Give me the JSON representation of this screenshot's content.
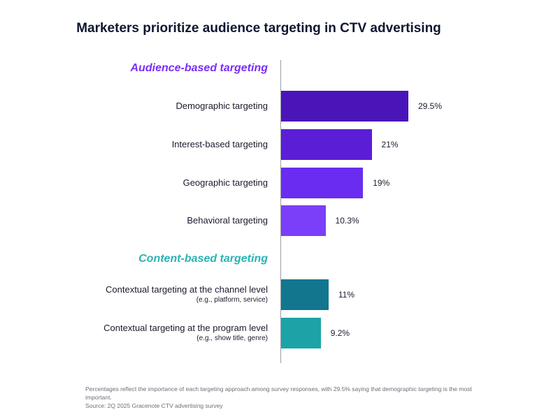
{
  "chart_data": {
    "type": "bar",
    "orientation": "horizontal",
    "title": "Marketers prioritize audience targeting in CTV advertising",
    "groups": [
      {
        "label": "Audience-based targeting",
        "color": "#7b2ff7",
        "items": [
          {
            "label": "Demographic targeting",
            "sub": "",
            "value": 29.5,
            "value_label": "29.5%",
            "color": "#4a15b8"
          },
          {
            "label": "Interest-based targeting",
            "sub": "",
            "value": 21,
            "value_label": "21%",
            "color": "#5b1ed6"
          },
          {
            "label": "Geographic targeting",
            "sub": "",
            "value": 19,
            "value_label": "19%",
            "color": "#6a2cf0"
          },
          {
            "label": "Behavioral targeting",
            "sub": "",
            "value": 10.3,
            "value_label": "10.3%",
            "color": "#7b3ff9"
          }
        ]
      },
      {
        "label": "Content-based targeting",
        "color": "#2bb3b3",
        "items": [
          {
            "label": "Contextual targeting at the channel level",
            "sub": "(e.g., platform, service)",
            "value": 11,
            "value_label": "11%",
            "color": "#12768f"
          },
          {
            "label": "Contextual targeting at the program level",
            "sub": "(e.g., show title, genre)",
            "value": 9.2,
            "value_label": "9.2%",
            "color": "#1ba3a8"
          }
        ]
      }
    ]
  },
  "footnote": {
    "line1": "Percentages reflect the importance of each targeting approach among survey responses, with 29.5% saying that demographic targeting is the most important.",
    "source": "Source: 2Q 2025 Gracenote CTV advertising survey"
  }
}
